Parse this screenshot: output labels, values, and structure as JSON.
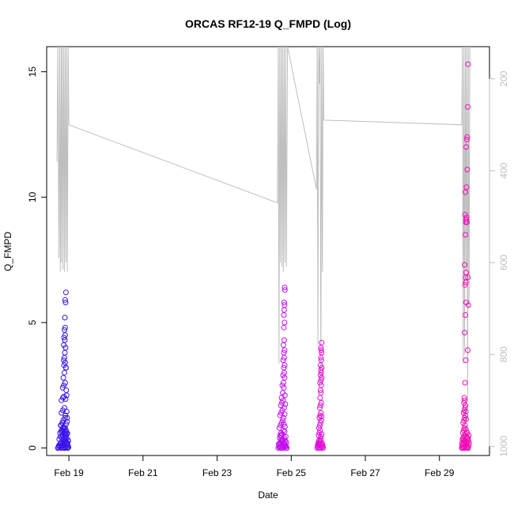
{
  "chart_data": {
    "type": "scatter",
    "title": "ORCAS RF12-19 Q_FMPD (Log)",
    "xlabel": "Date",
    "ylabel": "Q_FMPD",
    "xlim": [
      18.4,
      30.35
    ],
    "ylim": [
      -0.3,
      16
    ],
    "x_ticks": [
      {
        "value": 19,
        "label": "Feb 19"
      },
      {
        "value": 21,
        "label": "Feb 21"
      },
      {
        "value": 23,
        "label": "Feb 23"
      },
      {
        "value": 25,
        "label": "Feb 25"
      },
      {
        "value": 27,
        "label": "Feb 27"
      },
      {
        "value": 29,
        "label": "Feb 29"
      }
    ],
    "y_ticks": [
      0,
      5,
      10,
      15
    ],
    "secondary_axis": {
      "ticks": [
        200,
        400,
        600,
        800,
        1000
      ],
      "lim": [
        1020,
        130
      ],
      "color": "#bebebe"
    },
    "grid": false,
    "legend": "none",
    "series": [
      {
        "color": "#3b12f0",
        "x": [
          18.7,
          18.72,
          18.75,
          18.78,
          18.8,
          18.82,
          18.85,
          18.87,
          18.9,
          18.92,
          18.95,
          18.97,
          18.99,
          18.73,
          18.76,
          18.79,
          18.83,
          18.86,
          18.88,
          18.91,
          18.93,
          18.96,
          18.98,
          18.74,
          18.81,
          18.84,
          18.89,
          18.94,
          18.77,
          18.8,
          18.83,
          18.86,
          18.9,
          18.93,
          18.96,
          18.78,
          18.82,
          18.85,
          18.89,
          18.92,
          18.95,
          18.8,
          18.84,
          18.88,
          18.91,
          18.94,
          18.8,
          18.84,
          18.87,
          18.91,
          18.94,
          18.83,
          18.86,
          18.9,
          18.93,
          18.85,
          18.88,
          18.92,
          18.87,
          18.9,
          18.86,
          18.88,
          18.92,
          18.89,
          18.91,
          18.86,
          18.89,
          18.87,
          18.9,
          18.88,
          18.9,
          18.89,
          18.91,
          18.9,
          18.92,
          18.74,
          18.78,
          18.82,
          18.86,
          18.9,
          18.94,
          18.98,
          18.76,
          18.8,
          18.84,
          18.88,
          18.92,
          18.96,
          18.79,
          18.83,
          18.87,
          18.91,
          18.95,
          18.81,
          18.85,
          18.89,
          18.93,
          18.97
        ],
        "y": [
          0.0,
          0.02,
          0.05,
          0.0,
          0.03,
          0.08,
          0.0,
          0.04,
          0.0,
          0.06,
          0.02,
          0.0,
          0.03,
          0.1,
          0.15,
          0.2,
          0.12,
          0.18,
          0.25,
          0.3,
          0.22,
          0.16,
          0.28,
          0.35,
          0.42,
          0.5,
          0.6,
          0.55,
          0.45,
          0.65,
          0.7,
          0.75,
          0.8,
          0.68,
          0.58,
          0.9,
          1.0,
          1.1,
          1.2,
          0.95,
          1.05,
          1.4,
          1.5,
          1.6,
          1.3,
          1.45,
          1.9,
          2.0,
          2.05,
          1.95,
          2.1,
          2.4,
          2.5,
          2.6,
          2.3,
          2.8,
          3.0,
          3.2,
          3.3,
          3.4,
          3.5,
          3.6,
          3.2,
          3.8,
          4.0,
          4.1,
          4.3,
          4.4,
          4.5,
          4.7,
          4.8,
          5.2,
          5.8,
          5.9,
          6.2,
          0.1,
          0.2,
          0.3,
          0.4,
          0.5,
          0.4,
          0.3,
          0.6,
          0.7,
          0.8,
          0.6,
          0.5,
          0.2,
          0.9,
          1.0,
          0.8,
          0.7,
          1.2,
          0.1,
          0.2,
          0.3,
          0.2,
          0.1
        ]
      },
      {
        "color": "#c210ef",
        "x": [
          24.65,
          24.68,
          24.7,
          24.72,
          24.75,
          24.78,
          24.8,
          24.82,
          24.85,
          24.88,
          24.66,
          24.69,
          24.72,
          24.75,
          24.78,
          24.81,
          24.84,
          24.87,
          24.7,
          24.73,
          24.76,
          24.79,
          24.82,
          24.85,
          24.68,
          24.71,
          24.74,
          24.77,
          24.8,
          24.83,
          24.7,
          24.73,
          24.76,
          24.79,
          24.82,
          24.72,
          24.75,
          24.78,
          24.81,
          24.84,
          24.74,
          24.77,
          24.8,
          24.83,
          24.76,
          24.79,
          24.82,
          24.78,
          24.81,
          24.8,
          24.82,
          24.78,
          24.81,
          24.8,
          24.82,
          24.79,
          24.81,
          24.8,
          24.82,
          24.8,
          24.81,
          24.82,
          24.81,
          24.83,
          24.82,
          24.67,
          24.71,
          24.75,
          24.79,
          24.83,
          24.87,
          24.69,
          24.73,
          24.77,
          24.81,
          24.85
        ],
        "y": [
          0.0,
          0.03,
          0.06,
          0.0,
          0.04,
          0.0,
          0.08,
          0.02,
          0.05,
          0.0,
          0.15,
          0.2,
          0.3,
          0.25,
          0.35,
          0.4,
          0.28,
          0.22,
          0.5,
          0.6,
          0.55,
          0.7,
          0.65,
          0.45,
          0.8,
          0.9,
          1.0,
          1.1,
          0.95,
          0.85,
          1.3,
          1.4,
          1.5,
          1.2,
          1.35,
          1.7,
          1.8,
          1.9,
          1.6,
          1.75,
          2.0,
          2.2,
          2.4,
          2.1,
          2.5,
          2.6,
          2.8,
          2.9,
          3.0,
          3.2,
          3.3,
          3.5,
          3.6,
          3.8,
          3.9,
          4.1,
          4.3,
          4.8,
          5.0,
          5.3,
          5.5,
          5.7,
          5.8,
          6.3,
          6.4,
          0.1,
          0.2,
          0.3,
          0.2,
          0.1,
          0.0,
          0.4,
          0.5,
          0.3,
          0.2,
          0.1
        ]
      },
      {
        "color": "#e210d9",
        "x": [
          25.7,
          25.72,
          25.74,
          25.76,
          25.78,
          25.8,
          25.82,
          25.84,
          25.86,
          25.73,
          25.75,
          25.77,
          25.79,
          25.81,
          25.83,
          25.74,
          25.76,
          25.78,
          25.8,
          25.82,
          25.75,
          25.77,
          25.79,
          25.81,
          25.76,
          25.78,
          25.8,
          25.82,
          25.77,
          25.79,
          25.81,
          25.78,
          25.8,
          25.79,
          25.81,
          25.78,
          25.8,
          25.82,
          25.79,
          25.81,
          25.8,
          25.82,
          25.79,
          25.81,
          25.8,
          25.82,
          25.81,
          25.8,
          25.82,
          25.71,
          25.75,
          25.79,
          25.83,
          25.85,
          25.73,
          25.77
        ],
        "y": [
          0.0,
          0.05,
          0.0,
          0.1,
          0.02,
          0.0,
          0.08,
          0.04,
          0.0,
          0.2,
          0.3,
          0.25,
          0.35,
          0.15,
          0.1,
          0.5,
          0.6,
          0.7,
          0.45,
          0.55,
          0.8,
          0.9,
          1.0,
          1.1,
          1.2,
          1.3,
          1.4,
          1.25,
          1.6,
          1.7,
          1.8,
          2.0,
          2.2,
          2.3,
          2.5,
          2.6,
          2.7,
          2.8,
          2.9,
          3.0,
          3.1,
          3.2,
          3.3,
          3.5,
          3.6,
          3.8,
          3.9,
          4.0,
          4.2,
          0.1,
          0.2,
          0.3,
          0.2,
          0.1,
          0.15,
          0.25
        ]
      },
      {
        "color": "#f010b4",
        "x": [
          29.6,
          29.62,
          29.64,
          29.66,
          29.68,
          29.7,
          29.72,
          29.74,
          29.76,
          29.78,
          29.61,
          29.63,
          29.65,
          29.67,
          29.69,
          29.71,
          29.73,
          29.75,
          29.62,
          29.64,
          29.66,
          29.68,
          29.7,
          29.72,
          29.74,
          29.63,
          29.65,
          29.67,
          29.69,
          29.71,
          29.73,
          29.64,
          29.66,
          29.68,
          29.7,
          29.72,
          29.65,
          29.67,
          29.69,
          29.71,
          29.66,
          29.68,
          29.7,
          29.67,
          29.69,
          29.71,
          29.68,
          29.7,
          29.72,
          29.69,
          29.71,
          29.7,
          29.72,
          29.68,
          29.7,
          29.71,
          29.73,
          29.69,
          29.72,
          29.74,
          29.7,
          29.73,
          29.75,
          29.72,
          29.74,
          29.75,
          29.76,
          29.77,
          29.76,
          29.78,
          29.77,
          29.79,
          29.78,
          29.8,
          29.79,
          29.77,
          29.75,
          29.61,
          29.65,
          29.69,
          29.73,
          29.77
        ],
        "y": [
          0.0,
          0.03,
          0.0,
          0.05,
          0.0,
          0.08,
          0.02,
          0.0,
          0.04,
          0.0,
          0.1,
          0.15,
          0.2,
          0.25,
          0.3,
          0.12,
          0.18,
          0.22,
          0.35,
          0.4,
          0.45,
          0.5,
          0.55,
          0.42,
          0.38,
          0.6,
          0.7,
          0.8,
          0.9,
          0.75,
          0.65,
          1.0,
          1.1,
          1.2,
          1.3,
          1.15,
          1.4,
          1.5,
          1.6,
          1.45,
          1.8,
          1.9,
          1.7,
          2.0,
          2.6,
          3.5,
          4.6,
          5.3,
          5.8,
          6.5,
          6.6,
          6.8,
          7.0,
          7.3,
          8.5,
          9.0,
          9.2,
          9.3,
          9.1,
          9.0,
          10.2,
          10.4,
          11.1,
          12.0,
          12.3,
          12.4,
          13.6,
          15.3,
          3.9,
          5.7,
          6.8,
          0.5,
          0.3,
          0.2,
          0.1,
          0.4,
          0.6,
          0.2,
          0.3,
          0.1,
          0.2,
          0.4
        ]
      }
    ],
    "secondary_line": {
      "color": "#bebebe",
      "x": [
        18.68,
        18.7,
        18.73,
        18.75,
        18.77,
        18.79,
        18.8,
        18.82,
        18.84,
        18.86,
        18.88,
        18.9,
        18.92,
        18.94,
        18.96,
        18.98,
        19.0,
        24.63,
        24.65,
        24.67,
        24.69,
        24.71,
        24.73,
        24.75,
        24.77,
        24.79,
        24.81,
        24.83,
        24.85,
        24.87,
        24.9,
        25.68,
        25.7,
        25.72,
        25.74,
        25.76,
        25.78,
        25.8,
        25.82,
        25.84,
        25.86,
        25.88,
        29.6,
        29.62,
        29.64,
        29.66,
        29.68,
        29.7,
        29.72,
        29.74,
        29.76,
        29.78,
        29.8,
        29.82
      ],
      "y": [
        380,
        130,
        590,
        130,
        620,
        130,
        600,
        130,
        615,
        130,
        620,
        130,
        600,
        130,
        620,
        130,
        300,
        470,
        130,
        820,
        130,
        600,
        130,
        610,
        130,
        620,
        130,
        600,
        130,
        610,
        130,
        440,
        130,
        780,
        130,
        210,
        130,
        860,
        130,
        620,
        130,
        290,
        300,
        130,
        820,
        130,
        800,
        130,
        620,
        130,
        900,
        130,
        700,
        130
      ]
    }
  }
}
